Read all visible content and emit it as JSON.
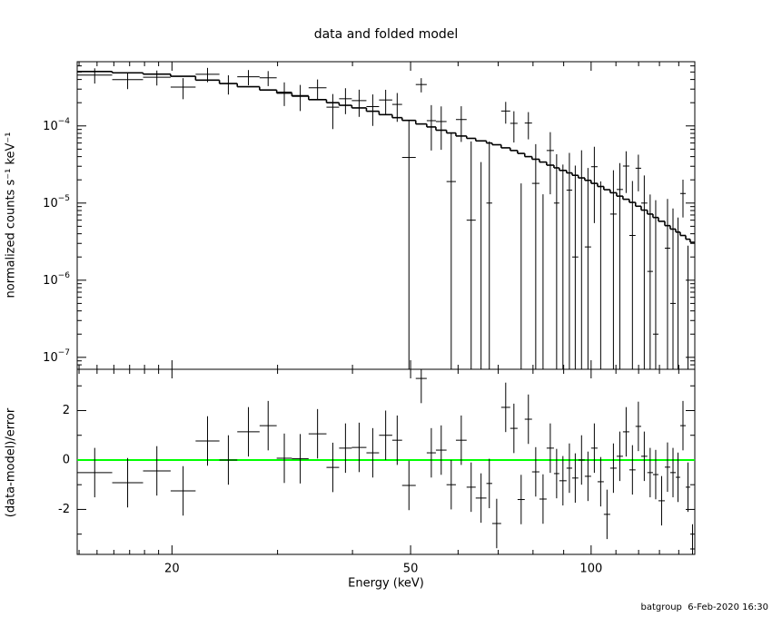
{
  "chart_data": {
    "type": "spectrum",
    "title": "data and folded model",
    "xlabel": "Energy (keV)",
    "ylabel": "normalized counts s⁻¹ keV⁻¹",
    "y2label": "(data-model)/error",
    "bins": [
      13.9,
      15.9,
      17.9,
      19.9,
      21.9,
      24.0,
      25.7,
      28.0,
      29.9,
      31.7,
      33.8,
      36.2,
      38.0,
      39.9,
      42.2,
      44.3,
      46.6,
      48.4,
      51.0,
      53.2,
      55.1,
      57.4,
      59.5,
      62.0,
      64.2,
      66.9,
      68.4,
      70.8,
      73.3,
      75.4,
      77.5,
      79.7,
      82.0,
      84.3,
      86.7,
      88.5,
      91.0,
      93.0,
      95.2,
      97.6,
      100.0,
      102.5,
      105.0,
      107.6,
      110.3,
      113.0,
      115.8,
      118.6,
      121.2,
      124.1,
      126.8,
      129.5,
      132.7,
      135.5,
      138.4,
      140.8,
      143.8,
      146.3,
      148.9
    ],
    "model": [
      0.000508,
      0.000488,
      0.000469,
      0.00044,
      0.000392,
      0.000354,
      0.000322,
      0.000292,
      0.000267,
      0.000243,
      0.000219,
      0.0002,
      0.000185,
      0.000171,
      0.000155,
      0.00014,
      0.000128,
      0.000118,
      0.000106,
      9.7e-05,
      8.8e-05,
      8.1e-05,
      7.4e-05,
      6.9e-05,
      6.4e-05,
      6e-05,
      5.7e-05,
      5.2e-05,
      4.8e-05,
      4.4e-05,
      4e-05,
      3.7e-05,
      3.4e-05,
      3.1e-05,
      2.86e-05,
      2.65e-05,
      2.46e-05,
      2.29e-05,
      2.12e-05,
      1.97e-05,
      1.8e-05,
      1.64e-05,
      1.49e-05,
      1.36e-05,
      1.23e-05,
      1.12e-05,
      1.02e-05,
      9.1e-06,
      8.1e-06,
      7.2e-06,
      6.5e-06,
      5.8e-06,
      5.1e-06,
      4.6e-06,
      4.2e-06,
      3.8e-06,
      3.4e-06,
      3.1e-06
    ],
    "data": [
      0.000456,
      0.000398,
      0.000428,
      0.000319,
      0.000467,
      0.000354,
      0.000433,
      0.000421,
      0.000274,
      0.000248,
      0.000312,
      0.000175,
      0.000225,
      0.000213,
      0.000178,
      0.000217,
      0.00019,
      3.9e-05,
      0.000344,
      0.000117,
      0.000114,
      1.9e-05,
      0.000121,
      6e-06,
      -2.1e-05,
      1e-05,
      -7.7e-05,
      0.000156,
      0.000108,
      -2.6e-05,
      0.000109,
      1.8e-05,
      -2.4e-05,
      4.8e-05,
      1e-05,
      4e-08,
      1.47e-05,
      2e-06,
      2.12e-05,
      2.7e-06,
      2.96e-05,
      -3.4e-06,
      -3.1e-05,
      7.2e-06,
      1.5e-05,
      3.02e-05,
      3.8e-06,
      2.83e-05,
      1e-05,
      1.3e-06,
      2e-07,
      -1.02e-05,
      2.6e-06,
      5e-07,
      -9e-07,
      1.33e-05,
      -3.4e-06,
      -1.74e-05
    ],
    "error": [
      0.000102,
      9.8e-05,
      9.4e-05,
      9.7e-05,
      9.8e-05,
      9.9e-05,
      9.7e-05,
      9.3e-05,
      9.3e-05,
      9.2e-05,
      8.8e-05,
      8.4e-05,
      8.3e-05,
      8.2e-05,
      7.8e-05,
      7.7e-05,
      7.7e-05,
      7.7e-05,
      7.2e-05,
      6.9e-05,
      6.5e-05,
      6.2e-05,
      5.9e-05,
      5.7e-05,
      5.5e-05,
      5.3e-05,
      5.2e-05,
      4.9e-05,
      4.7e-05,
      4.4e-05,
      4.2e-05,
      4e-05,
      3.7e-05,
      3.5e-05,
      3.3e-05,
      3.15e-05,
      3e-05,
      2.86e-05,
      2.71e-05,
      2.58e-05,
      2.41e-05,
      2.25e-05,
      2.09e-05,
      1.94e-05,
      1.8e-05,
      1.67e-05,
      1.55e-05,
      1.41e-05,
      1.28e-05,
      1.16e-05,
      1.07e-05,
      9.7e-06,
      8.7e-06,
      8e-06,
      7.4e-06,
      6.8e-06,
      6.2e-06,
      5.7e-06
    ],
    "residual": [
      -0.51,
      -0.92,
      -0.44,
      -1.25,
      0.77,
      0,
      1.14,
      1.39,
      0.07,
      0.05,
      1.06,
      -0.3,
      0.48,
      0.51,
      0.29,
      1.0,
      0.8,
      -1.03,
      3.3,
      0.29,
      0.4,
      -1.0,
      0.8,
      -1.1,
      -1.54,
      -0.95,
      -2.57,
      2.13,
      1.28,
      -1.6,
      1.65,
      -0.48,
      -1.58,
      0.48,
      -0.55,
      -0.84,
      -0.33,
      -0.73,
      0,
      -0.66,
      0.48,
      -0.88,
      -2.2,
      -0.33,
      0.15,
      1.14,
      -0.4,
      1.36,
      0.15,
      -0.51,
      -0.59,
      -1.65,
      -0.29,
      -0.51,
      -0.7,
      1.39,
      -1.1,
      -3.6
    ],
    "residual_error": [
      1,
      1,
      1,
      1,
      1,
      1,
      1,
      1,
      1,
      1,
      1,
      1,
      1,
      1,
      1,
      1,
      1,
      1,
      1,
      1,
      1,
      1,
      1,
      1,
      1,
      1,
      1,
      1,
      1,
      1,
      1,
      1,
      1,
      1,
      1,
      1,
      1,
      1,
      1,
      1,
      1,
      1,
      1,
      1,
      1,
      1,
      1,
      1,
      1,
      1,
      1,
      1,
      1,
      1,
      1,
      1,
      1,
      1
    ],
    "log_x": true,
    "xlim": [
      13.9,
      148.9
    ],
    "xticks": [
      20,
      50,
      100
    ],
    "xminor": [
      14,
      15,
      16,
      17,
      18,
      19,
      30,
      40,
      60,
      70,
      80,
      90,
      110,
      120,
      130,
      140
    ],
    "log_y": true,
    "ylim": [
      7e-08,
      0.00068
    ],
    "yticks": [
      {
        "value": 1e-07,
        "label": "10",
        "exponent": "−7"
      },
      {
        "value": 1e-06,
        "label": "10",
        "exponent": "−6"
      },
      {
        "value": 1e-05,
        "label": "10",
        "exponent": "−5"
      },
      {
        "value": 0.0001,
        "label": "10",
        "exponent": "−4"
      }
    ],
    "yminor": [
      8e-08,
      9e-08,
      2e-07,
      3e-07,
      4e-07,
      5e-07,
      6e-07,
      7e-07,
      8e-07,
      9e-07,
      2e-06,
      3e-06,
      4e-06,
      5e-06,
      6e-06,
      7e-06,
      8e-06,
      9e-06,
      2e-05,
      3e-05,
      4e-05,
      5e-05,
      6e-05,
      7e-05,
      8e-05,
      9e-05,
      0.0002,
      0.0003,
      0.0004,
      0.0005,
      0.0006
    ],
    "y2lim": [
      -3.82,
      3.67
    ],
    "y2ticks": [
      -2,
      0,
      2
    ],
    "y2minor": [
      -3,
      -1,
      1,
      3
    ],
    "data_color": "#000000",
    "model_color": "#000000",
    "zero_color": "#00ff00"
  },
  "footer": "batgroup  6-Feb-2020 16:30"
}
